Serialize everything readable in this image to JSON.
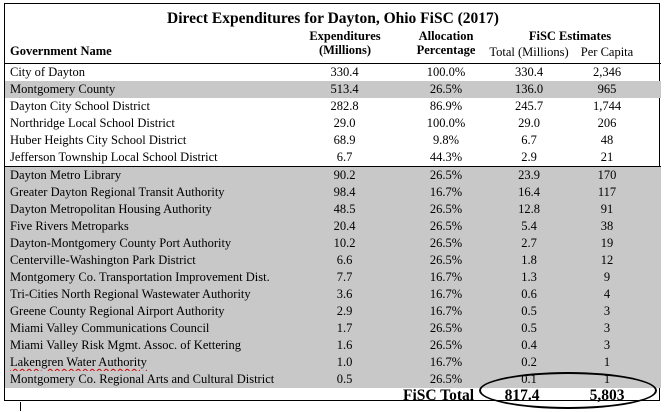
{
  "title": "Direct Expenditures for Dayton, Ohio FiSC (2017)",
  "headers": {
    "government_name": "Government Name",
    "expenditures_line1": "Expenditures",
    "expenditures_line2": "(Millions)",
    "allocation_line1": "Allocation",
    "allocation_line2": "Percentage",
    "fisc_estimates": "FiSC Estimates",
    "total_millions": "Total (Millions)",
    "per_capita": "Per Capita"
  },
  "rows": [
    {
      "name": "City of Dayton",
      "expenditures": "330.4",
      "allocation": "100.0%",
      "total": "330.4",
      "per_capita": "2,346",
      "shaded": false
    },
    {
      "name": "Montgomery County",
      "expenditures": "513.4",
      "allocation": "26.5%",
      "total": "136.0",
      "per_capita": "965",
      "shaded": true
    },
    {
      "name": "Dayton City School District",
      "expenditures": "282.8",
      "allocation": "86.9%",
      "total": "245.7",
      "per_capita": "1,744",
      "shaded": false
    },
    {
      "name": "Northridge Local School District",
      "expenditures": "29.0",
      "allocation": "100.0%",
      "total": "29.0",
      "per_capita": "206",
      "shaded": false
    },
    {
      "name": "Huber Heights City School District",
      "expenditures": "68.9",
      "allocation": "9.8%",
      "total": "6.7",
      "per_capita": "48",
      "shaded": false
    },
    {
      "name": "Jefferson Township Local School District",
      "expenditures": "6.7",
      "allocation": "44.3%",
      "total": "2.9",
      "per_capita": "21",
      "shaded": false
    },
    {
      "name": "Dayton Metro Library",
      "expenditures": "90.2",
      "allocation": "26.5%",
      "total": "23.9",
      "per_capita": "170",
      "shaded": true
    },
    {
      "name": "Greater Dayton Regional Transit Authority",
      "expenditures": "98.4",
      "allocation": "16.7%",
      "total": "16.4",
      "per_capita": "117",
      "shaded": true
    },
    {
      "name": "Dayton Metropolitan Housing Authority",
      "expenditures": "48.5",
      "allocation": "26.5%",
      "total": "12.8",
      "per_capita": "91",
      "shaded": true
    },
    {
      "name": "Five Rivers Metroparks",
      "expenditures": "20.4",
      "allocation": "26.5%",
      "total": "5.4",
      "per_capita": "38",
      "shaded": true
    },
    {
      "name": "Dayton-Montgomery County Port Authority",
      "expenditures": "10.2",
      "allocation": "26.5%",
      "total": "2.7",
      "per_capita": "19",
      "shaded": true
    },
    {
      "name": "Centerville-Washington Park District",
      "expenditures": "6.6",
      "allocation": "26.5%",
      "total": "1.8",
      "per_capita": "12",
      "shaded": true
    },
    {
      "name": "Montgomery Co. Transportation Improvement Dist.",
      "expenditures": "7.7",
      "allocation": "16.7%",
      "total": "1.3",
      "per_capita": "9",
      "shaded": true
    },
    {
      "name": "Tri-Cities North Regional Wastewater Authority",
      "expenditures": "3.6",
      "allocation": "16.7%",
      "total": "0.6",
      "per_capita": "4",
      "shaded": true
    },
    {
      "name": "Greene County Regional Airport Authority",
      "expenditures": "2.9",
      "allocation": "16.7%",
      "total": "0.5",
      "per_capita": "3",
      "shaded": true
    },
    {
      "name": "Miami Valley Communications Council",
      "expenditures": "1.7",
      "allocation": "26.5%",
      "total": "0.5",
      "per_capita": "3",
      "shaded": true
    },
    {
      "name": "Miami Valley Risk Mgmt. Assoc. of Kettering",
      "expenditures": "1.6",
      "allocation": "26.5%",
      "total": "0.4",
      "per_capita": "3",
      "shaded": true
    },
    {
      "name": "Lakengren Water Authority",
      "expenditures": "1.0",
      "allocation": "16.7%",
      "total": "0.2",
      "per_capita": "1",
      "shaded": true
    },
    {
      "name": "Montgomery Co. Regional Arts and Cultural District",
      "expenditures": "0.5",
      "allocation": "26.5%",
      "total": "0.1",
      "per_capita": "1",
      "shaded": true
    }
  ],
  "footer": {
    "label": "FiSC Total",
    "total": "817.4",
    "per_capita": "5,803"
  },
  "colors": {
    "shade": "#c8c8c8",
    "spellcheck": "#d20000"
  }
}
